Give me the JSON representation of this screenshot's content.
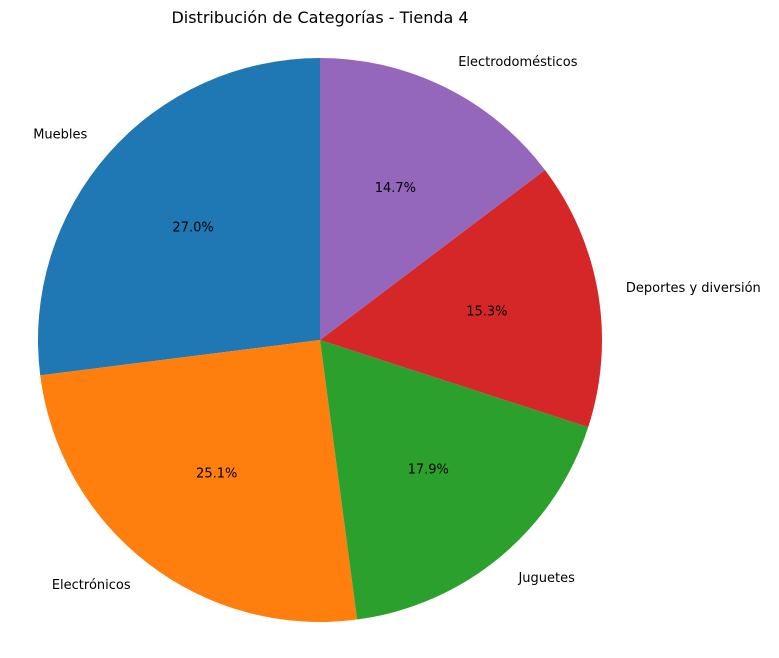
{
  "chart_data": {
    "type": "pie",
    "title": "Distribución de Categorías - Tienda 4",
    "categories": [
      "Muebles",
      "Electrónicos",
      "Juguetes",
      "Deportes y diversión",
      "Electrodomésticos"
    ],
    "values": [
      27.0,
      25.1,
      17.9,
      15.3,
      14.7
    ],
    "value_labels": [
      "27.0%",
      "25.1%",
      "17.9%",
      "15.3%",
      "14.7%"
    ],
    "colors": [
      "#1f77b4",
      "#ff7f0e",
      "#2ca02c",
      "#d62728",
      "#9467bd"
    ],
    "start_angle_deg": 90,
    "direction": "counterclockwise",
    "legend": "none"
  }
}
